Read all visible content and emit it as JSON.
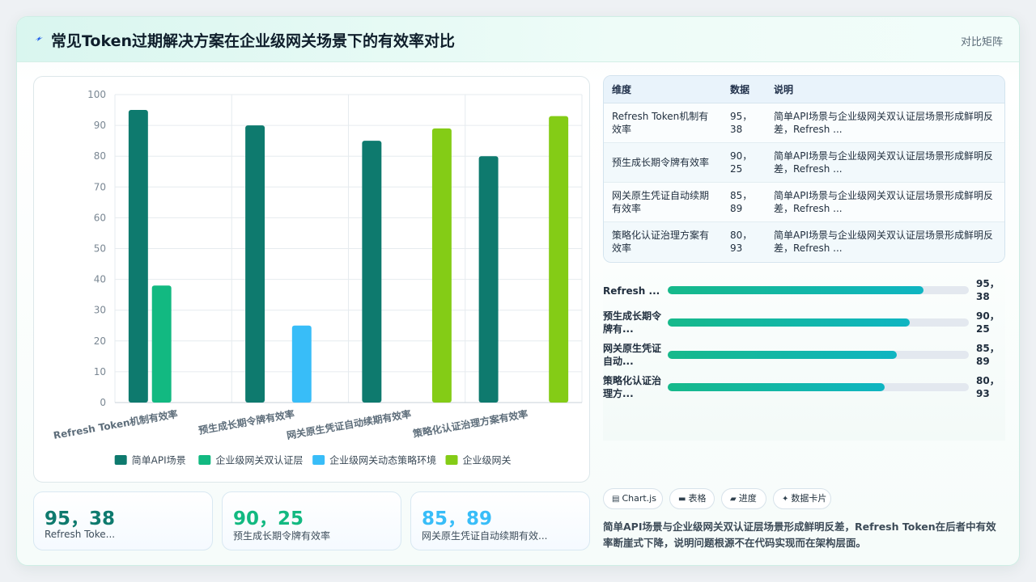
{
  "header": {
    "title": "常见Token过期解决方案在企业级网关场景下的有效率对比",
    "tag": "对比矩阵"
  },
  "chart_data": {
    "type": "bar",
    "categories": [
      "Refresh Token机制有效率",
      "预生成长期令牌有效率",
      "网关原生凭证自动续期有效率",
      "策略化认证治理方案有效率"
    ],
    "series": [
      {
        "name": "简单API场景",
        "color": "#0e7a6e",
        "values": [
          95,
          90,
          85,
          80
        ]
      },
      {
        "name": "企业级网关双认证层",
        "color": "#12b981",
        "values": [
          38,
          null,
          null,
          null
        ]
      },
      {
        "name": "企业级网关动态策略环境",
        "color": "#38bdf8",
        "values": [
          null,
          25,
          null,
          null
        ]
      },
      {
        "name": "企业级网关",
        "color": "#84cc16",
        "values": [
          null,
          null,
          89,
          93
        ]
      }
    ],
    "ylim": [
      0,
      100
    ],
    "yticks": [
      0,
      10,
      20,
      30,
      40,
      50,
      60,
      70,
      80,
      90,
      100
    ],
    "grid": true,
    "legend_position": "bottom"
  },
  "stats": [
    {
      "value": "95，38",
      "label": "Refresh Toke...",
      "color": "#0e7a6e"
    },
    {
      "value": "90，25",
      "label": "预生成长期令牌有效率",
      "color": "#12b981"
    },
    {
      "value": "85，89",
      "label": "网关原生凭证自动续期有效...",
      "color": "#38bdf8"
    }
  ],
  "table": {
    "headers": [
      "维度",
      "数据",
      "说明"
    ],
    "rows": [
      {
        "dim": "Refresh Token机制有效率",
        "data": "95，38",
        "desc": "简单API场景与企业级网关双认证层场景形成鲜明反差，Refresh ..."
      },
      {
        "dim": "预生成长期令牌有效率",
        "data": "90，25",
        "desc": "简单API场景与企业级网关双认证层场景形成鲜明反差，Refresh ..."
      },
      {
        "dim": "网关原生凭证自动续期有效率",
        "data": "85，89",
        "desc": "简单API场景与企业级网关双认证层场景形成鲜明反差，Refresh ..."
      },
      {
        "dim": "策略化认证治理方案有效率",
        "data": "80，93",
        "desc": "简单API场景与企业级网关双认证层场景形成鲜明反差，Refresh ..."
      }
    ]
  },
  "progress": [
    {
      "label": "Refresh ...",
      "value": "95，38",
      "percent": 85
    },
    {
      "label": "预生成长期令牌有...",
      "value": "90，25",
      "percent": 80.5
    },
    {
      "label": "网关原生凭证自动...",
      "value": "85，89",
      "percent": 76
    },
    {
      "label": "策略化认证治理方...",
      "value": "80，93",
      "percent": 72
    }
  ],
  "chips": [
    {
      "icon": "chart-icon",
      "glyph": "▤",
      "label": "Chart.js"
    },
    {
      "icon": "table-icon",
      "glyph": "▬",
      "label": "表格"
    },
    {
      "icon": "progress-icon",
      "glyph": "▰",
      "label": "进度"
    },
    {
      "icon": "card-icon",
      "glyph": "✦",
      "label": "数据卡片"
    }
  ],
  "summary": "简单API场景与企业级网关双认证层场景形成鲜明反差，Refresh Token在后者中有效率断崖式下降，说明问题根源不在代码实现而在架构层面。"
}
